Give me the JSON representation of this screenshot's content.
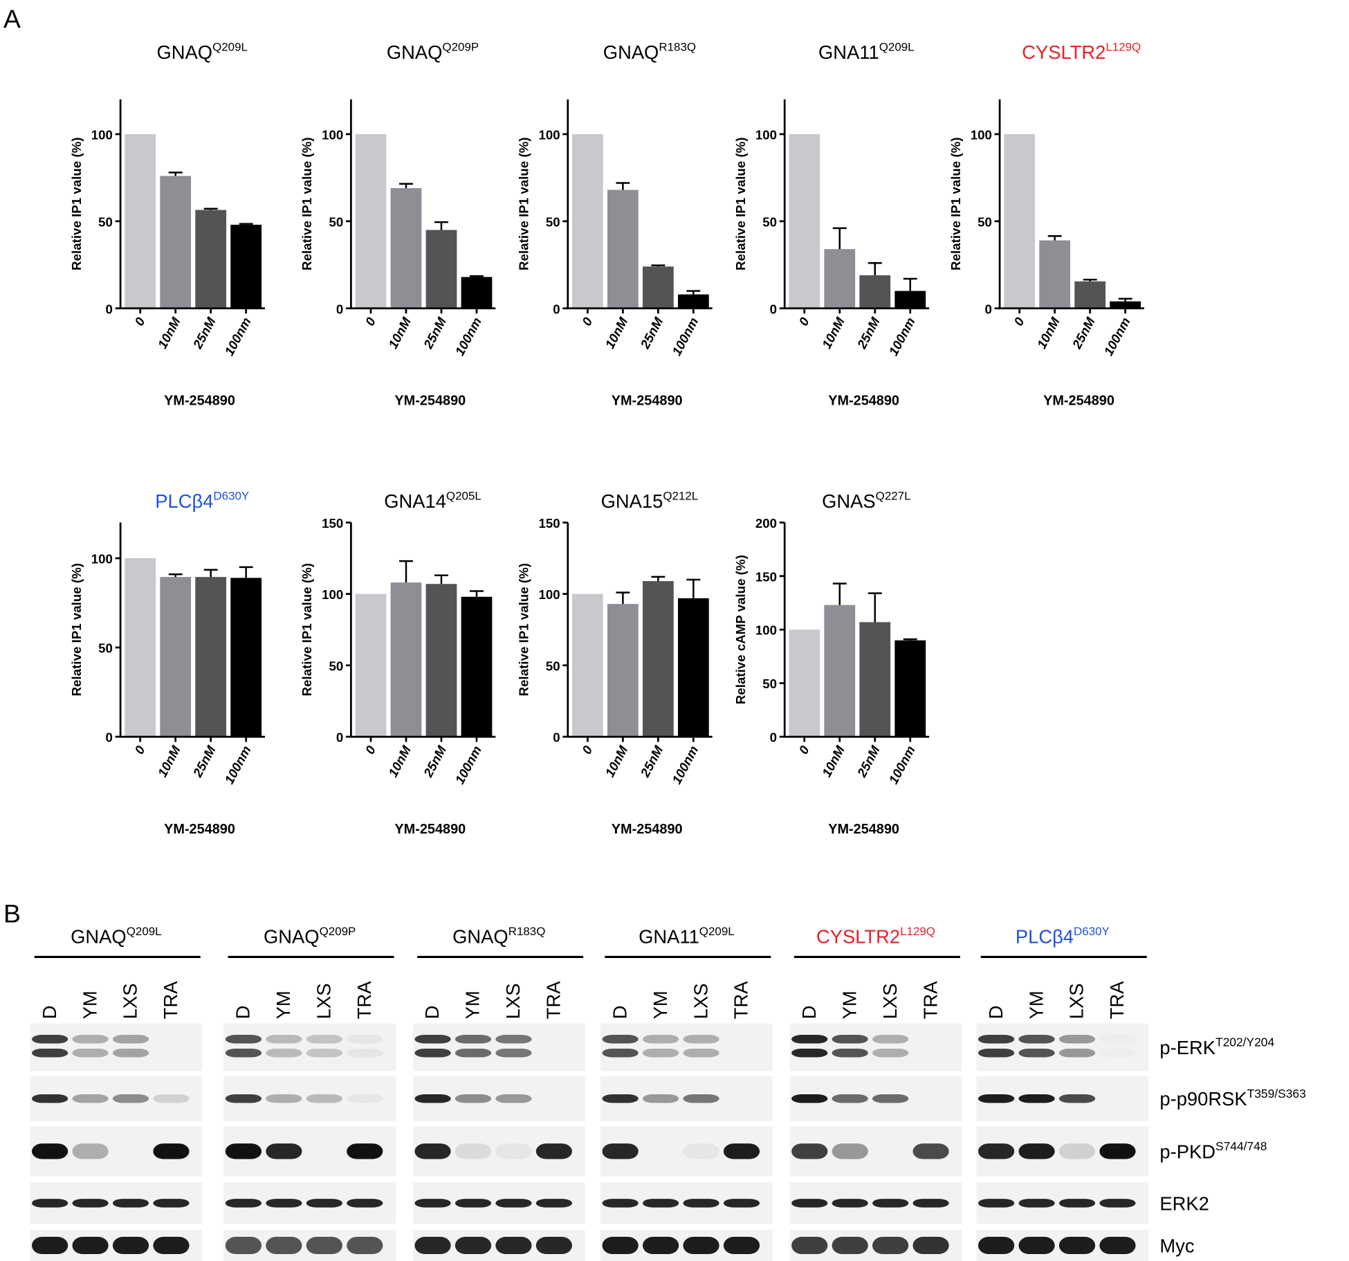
{
  "panel_labels": [
    "A",
    "B"
  ],
  "chart_data": [
    {
      "type": "bar",
      "title": "GNAQ",
      "title_sup": "Q209L",
      "title_color": "#000000",
      "y_label": "Relative IP1 value  (%)",
      "x_label": "YM-254890",
      "categories": [
        "0",
        "10nM",
        "25nM",
        "100nm"
      ],
      "values": [
        100,
        76,
        56.5,
        48
      ],
      "errors": [
        null,
        2,
        0.7,
        0.5
      ],
      "colors": [
        "#c8c8cd",
        "#8e8e94",
        "#545457",
        "#000000"
      ],
      "ylim": [
        0,
        120
      ],
      "yticks": [
        0,
        50,
        100
      ]
    },
    {
      "type": "bar",
      "title": "GNAQ",
      "title_sup": "Q209P",
      "title_color": "#000000",
      "y_label": "Relative IP1 value  (%)",
      "x_label": "YM-254890",
      "categories": [
        "0",
        "10nM",
        "25nM",
        "100nm"
      ],
      "values": [
        100,
        69,
        45,
        18
      ],
      "errors": [
        null,
        2.5,
        4.5,
        0.5
      ],
      "colors": [
        "#c8c8cd",
        "#8e8e94",
        "#545457",
        "#000000"
      ],
      "ylim": [
        0,
        120
      ],
      "yticks": [
        0,
        50,
        100
      ]
    },
    {
      "type": "bar",
      "title": "GNAQ",
      "title_sup": "R183Q",
      "title_color": "#000000",
      "y_label": "Relative IP1 value  (%)",
      "x_label": "YM-254890",
      "categories": [
        "0",
        "10nM",
        "25nM",
        "100nm"
      ],
      "values": [
        100,
        68,
        24,
        8
      ],
      "errors": [
        null,
        4,
        0.7,
        2
      ],
      "colors": [
        "#c8c8cd",
        "#8e8e94",
        "#545457",
        "#000000"
      ],
      "ylim": [
        0,
        120
      ],
      "yticks": [
        0,
        50,
        100
      ]
    },
    {
      "type": "bar",
      "title": "GNA11",
      "title_sup": "Q209L",
      "title_color": "#000000",
      "y_label": "Relative IP1 value  (%)",
      "x_label": "YM-254890",
      "categories": [
        "0",
        "10nM",
        "25nM",
        "100nm"
      ],
      "values": [
        100,
        34,
        19,
        10
      ],
      "errors": [
        null,
        12,
        7,
        7
      ],
      "colors": [
        "#c8c8cd",
        "#8e8e94",
        "#545457",
        "#000000"
      ],
      "ylim": [
        0,
        120
      ],
      "yticks": [
        0,
        50,
        100
      ]
    },
    {
      "type": "bar",
      "title": "CYSLTR2",
      "title_sup": "L129Q",
      "title_color": "#e8202a",
      "y_label": "Relative IP1 value  (%)",
      "x_label": "YM-254890",
      "categories": [
        "0",
        "10nM",
        "25nM",
        "100nm"
      ],
      "values": [
        100,
        39,
        15.5,
        4
      ],
      "errors": [
        null,
        2.5,
        1,
        1.5
      ],
      "colors": [
        "#c8c8cd",
        "#8e8e94",
        "#545457",
        "#000000"
      ],
      "ylim": [
        0,
        120
      ],
      "yticks": [
        0,
        50,
        100
      ]
    },
    {
      "type": "bar",
      "title": "PLCβ4",
      "title_sup": "D630Y",
      "title_color": "#2050e0",
      "y_label": "Relative IP1 value  (%)",
      "x_label": "YM-254890",
      "categories": [
        "0",
        "10nM",
        "25nM",
        "100nm"
      ],
      "values": [
        100,
        89.5,
        89.5,
        89
      ],
      "errors": [
        null,
        1.5,
        4,
        6
      ],
      "colors": [
        "#c8c8cd",
        "#8e8e94",
        "#545457",
        "#000000"
      ],
      "ylim": [
        0,
        120
      ],
      "yticks": [
        0,
        50,
        100
      ]
    },
    {
      "type": "bar",
      "title": "GNA14",
      "title_sup": "Q205L",
      "title_color": "#000000",
      "y_label": "Relative IP1 value  (%)",
      "x_label": "YM-254890",
      "categories": [
        "0",
        "10nM",
        "25nM",
        "100nm"
      ],
      "values": [
        100,
        108,
        107,
        98
      ],
      "errors": [
        null,
        15,
        6,
        4
      ],
      "colors": [
        "#c8c8cd",
        "#8e8e94",
        "#545457",
        "#000000"
      ],
      "ylim": [
        0,
        150
      ],
      "yticks": [
        0,
        50,
        100,
        150
      ]
    },
    {
      "type": "bar",
      "title": "GNA15",
      "title_sup": "Q212L",
      "title_color": "#000000",
      "y_label": "Relative IP1 value  (%)",
      "x_label": "YM-254890",
      "categories": [
        "0",
        "10nM",
        "25nM",
        "100nm"
      ],
      "values": [
        100,
        93,
        109,
        97
      ],
      "errors": [
        null,
        8,
        3,
        13
      ],
      "colors": [
        "#c8c8cd",
        "#8e8e94",
        "#545457",
        "#000000"
      ],
      "ylim": [
        0,
        150
      ],
      "yticks": [
        0,
        50,
        100,
        150
      ]
    },
    {
      "type": "bar",
      "title": "GNAS",
      "title_sup": "Q227L",
      "title_color": "#000000",
      "y_label": "Relative cAMP value  (%)",
      "x_label": "YM-254890",
      "categories": [
        "0",
        "10nM",
        "25nM",
        "100nm"
      ],
      "values": [
        100,
        123,
        107,
        90
      ],
      "errors": [
        null,
        20,
        27,
        1
      ],
      "colors": [
        "#c8c8cd",
        "#8e8e94",
        "#545457",
        "#000000"
      ],
      "ylim": [
        0,
        200
      ],
      "yticks": [
        0,
        50,
        100,
        150,
        200
      ]
    }
  ],
  "blot": {
    "groups": [
      {
        "title": "GNAQ",
        "title_sup": "Q209L",
        "title_color": "#000000"
      },
      {
        "title": "GNAQ",
        "title_sup": "Q209P",
        "title_color": "#000000"
      },
      {
        "title": "GNAQ",
        "title_sup": "R183Q",
        "title_color": "#000000"
      },
      {
        "title": "GNA11",
        "title_sup": "Q209L",
        "title_color": "#000000"
      },
      {
        "title": "CYSLTR2",
        "title_sup": "L129Q",
        "title_color": "#e8202a"
      },
      {
        "title": "PLCβ4",
        "title_sup": "D630Y",
        "title_color": "#2050e0"
      }
    ],
    "lanes": [
      "D",
      "YM",
      "LXS",
      "TRA"
    ],
    "rows": [
      {
        "label": "p-ERK",
        "sup": "T202/Y204"
      },
      {
        "label": "p-p90RSK",
        "sup": "T359/S363"
      },
      {
        "label": "p-PKD",
        "sup": "S744/748"
      },
      {
        "label": "ERK2",
        "sup": ""
      },
      {
        "label": "Myc",
        "sup": ""
      }
    ]
  }
}
